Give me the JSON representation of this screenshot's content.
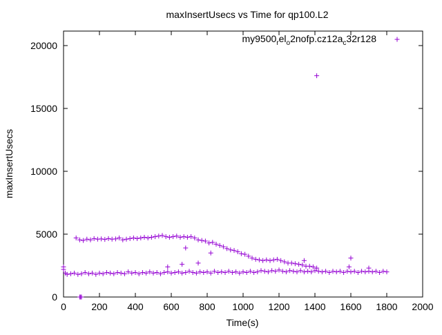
{
  "chart_data": {
    "type": "scatter",
    "title": "maxInsertUsecs vs Time for qp100.L2",
    "xlabel": "Time(s)",
    "ylabel": "maxInsertUsecs",
    "xlim": [
      0,
      2000
    ],
    "ylim": [
      0,
      21000
    ],
    "xticks": [
      0,
      200,
      400,
      600,
      800,
      1000,
      1200,
      1400,
      1600,
      1800,
      2000
    ],
    "yticks": [
      0,
      5000,
      10000,
      15000,
      20000
    ],
    "grid": false,
    "legend_position": "top-right",
    "series": [
      {
        "name": "my9500_rel_o2nofp.cz12a_c32r128",
        "legend_parts": [
          "my9500",
          "r",
          "el",
          "o",
          "2nofp.cz12a",
          "c",
          "32r128"
        ],
        "color": "#9400d3",
        "marker": "plus",
        "upper_band": [
          [
            70,
            4700
          ],
          [
            90,
            4550
          ],
          [
            110,
            4500
          ],
          [
            130,
            4600
          ],
          [
            150,
            4550
          ],
          [
            170,
            4650
          ],
          [
            190,
            4600
          ],
          [
            210,
            4620
          ],
          [
            230,
            4580
          ],
          [
            250,
            4650
          ],
          [
            270,
            4600
          ],
          [
            290,
            4620
          ],
          [
            310,
            4700
          ],
          [
            330,
            4550
          ],
          [
            350,
            4600
          ],
          [
            370,
            4650
          ],
          [
            390,
            4700
          ],
          [
            410,
            4650
          ],
          [
            430,
            4700
          ],
          [
            450,
            4750
          ],
          [
            470,
            4700
          ],
          [
            490,
            4750
          ],
          [
            510,
            4800
          ],
          [
            530,
            4850
          ],
          [
            550,
            4900
          ],
          [
            570,
            4800
          ],
          [
            590,
            4750
          ],
          [
            610,
            4800
          ],
          [
            630,
            4850
          ],
          [
            650,
            4750
          ],
          [
            670,
            4800
          ],
          [
            690,
            4750
          ],
          [
            710,
            4800
          ],
          [
            730,
            4700
          ],
          [
            750,
            4550
          ],
          [
            770,
            4500
          ],
          [
            790,
            4450
          ],
          [
            810,
            4300
          ],
          [
            830,
            4350
          ],
          [
            850,
            4200
          ],
          [
            870,
            4100
          ],
          [
            890,
            4000
          ],
          [
            910,
            3850
          ],
          [
            930,
            3750
          ],
          [
            950,
            3700
          ],
          [
            970,
            3600
          ],
          [
            990,
            3450
          ],
          [
            1010,
            3400
          ],
          [
            1030,
            3250
          ],
          [
            1050,
            3100
          ],
          [
            1070,
            3000
          ],
          [
            1090,
            2950
          ],
          [
            1110,
            2900
          ],
          [
            1130,
            2950
          ],
          [
            1150,
            2900
          ],
          [
            1170,
            2950
          ],
          [
            1190,
            3000
          ],
          [
            1210,
            2900
          ],
          [
            1230,
            2800
          ],
          [
            1250,
            2700
          ],
          [
            1270,
            2700
          ],
          [
            1290,
            2650
          ],
          [
            1310,
            2600
          ],
          [
            1330,
            2550
          ],
          [
            1350,
            2450
          ],
          [
            1370,
            2450
          ],
          [
            1390,
            2400
          ],
          [
            1410,
            2300
          ]
        ],
        "lower_band": [
          [
            0,
            2200
          ],
          [
            10,
            1900
          ],
          [
            20,
            1800
          ],
          [
            40,
            1850
          ],
          [
            60,
            1900
          ],
          [
            80,
            1800
          ],
          [
            100,
            1850
          ],
          [
            120,
            1950
          ],
          [
            140,
            1850
          ],
          [
            160,
            1900
          ],
          [
            180,
            1800
          ],
          [
            200,
            1900
          ],
          [
            220,
            1850
          ],
          [
            240,
            1950
          ],
          [
            260,
            1900
          ],
          [
            280,
            1850
          ],
          [
            300,
            1950
          ],
          [
            320,
            1900
          ],
          [
            340,
            1850
          ],
          [
            360,
            2000
          ],
          [
            380,
            1900
          ],
          [
            400,
            1950
          ],
          [
            420,
            1850
          ],
          [
            440,
            1950
          ],
          [
            460,
            1900
          ],
          [
            480,
            2000
          ],
          [
            500,
            1900
          ],
          [
            520,
            1950
          ],
          [
            540,
            1850
          ],
          [
            560,
            1950
          ],
          [
            580,
            2000
          ],
          [
            600,
            1900
          ],
          [
            620,
            1950
          ],
          [
            640,
            2000
          ],
          [
            660,
            1900
          ],
          [
            680,
            1950
          ],
          [
            700,
            2050
          ],
          [
            720,
            1950
          ],
          [
            740,
            1900
          ],
          [
            760,
            2000
          ],
          [
            780,
            1950
          ],
          [
            800,
            2000
          ],
          [
            820,
            1900
          ],
          [
            840,
            2050
          ],
          [
            860,
            1950
          ],
          [
            880,
            2000
          ],
          [
            900,
            1950
          ],
          [
            920,
            2050
          ],
          [
            940,
            1950
          ],
          [
            960,
            2000
          ],
          [
            980,
            1900
          ],
          [
            1000,
            2000
          ],
          [
            1020,
            1950
          ],
          [
            1040,
            2050
          ],
          [
            1060,
            1950
          ],
          [
            1080,
            2000
          ],
          [
            1100,
            2100
          ],
          [
            1120,
            2050
          ],
          [
            1140,
            2000
          ],
          [
            1160,
            2100
          ],
          [
            1180,
            2050
          ],
          [
            1200,
            2150
          ],
          [
            1220,
            2050
          ],
          [
            1240,
            2000
          ],
          [
            1260,
            2100
          ],
          [
            1280,
            2050
          ],
          [
            1300,
            2000
          ],
          [
            1320,
            2100
          ],
          [
            1340,
            2000
          ],
          [
            1360,
            2050
          ],
          [
            1380,
            2000
          ],
          [
            1400,
            2100
          ],
          [
            1420,
            2050
          ],
          [
            1440,
            2000
          ],
          [
            1460,
            2050
          ],
          [
            1480,
            1950
          ],
          [
            1500,
            2050
          ],
          [
            1520,
            2000
          ],
          [
            1540,
            2050
          ],
          [
            1560,
            1950
          ],
          [
            1580,
            2050
          ],
          [
            1600,
            2000
          ],
          [
            1620,
            2050
          ],
          [
            1640,
            1950
          ],
          [
            1660,
            2050
          ],
          [
            1680,
            2000
          ],
          [
            1700,
            2050
          ],
          [
            1720,
            2000
          ],
          [
            1740,
            2050
          ],
          [
            1760,
            1950
          ],
          [
            1780,
            2050
          ],
          [
            1800,
            2000
          ]
        ],
        "outliers": [
          [
            1410,
            17600
          ],
          [
            90,
            0
          ],
          [
            95,
            0
          ],
          [
            100,
            0
          ],
          [
            0,
            2400
          ],
          [
            680,
            3900
          ],
          [
            820,
            3500
          ],
          [
            1600,
            3100
          ],
          [
            660,
            2600
          ],
          [
            750,
            2700
          ],
          [
            580,
            2400
          ],
          [
            1700,
            2300
          ],
          [
            1340,
            2900
          ],
          [
            1590,
            2400
          ]
        ]
      }
    ]
  }
}
